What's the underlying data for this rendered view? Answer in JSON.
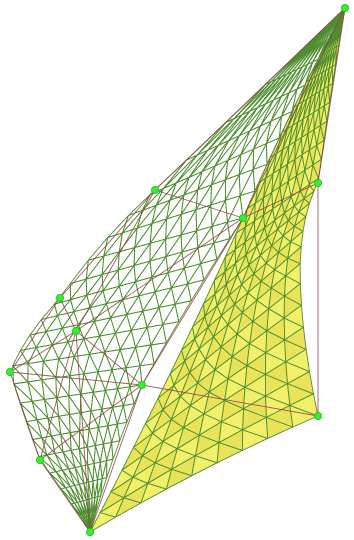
{
  "scene": {
    "colors": {
      "background": "#ffffff",
      "surface_fill": "#f2ef6a",
      "surface_fill_dark": "#e9e35a",
      "mesh_line": "#4d8f2f",
      "control_line": "#9a3a4a",
      "control_point": "#33ee33"
    },
    "control_point_shape": "circle",
    "layers": [
      "shaded-surface",
      "wireframe-mesh",
      "control-net",
      "control-points"
    ]
  }
}
